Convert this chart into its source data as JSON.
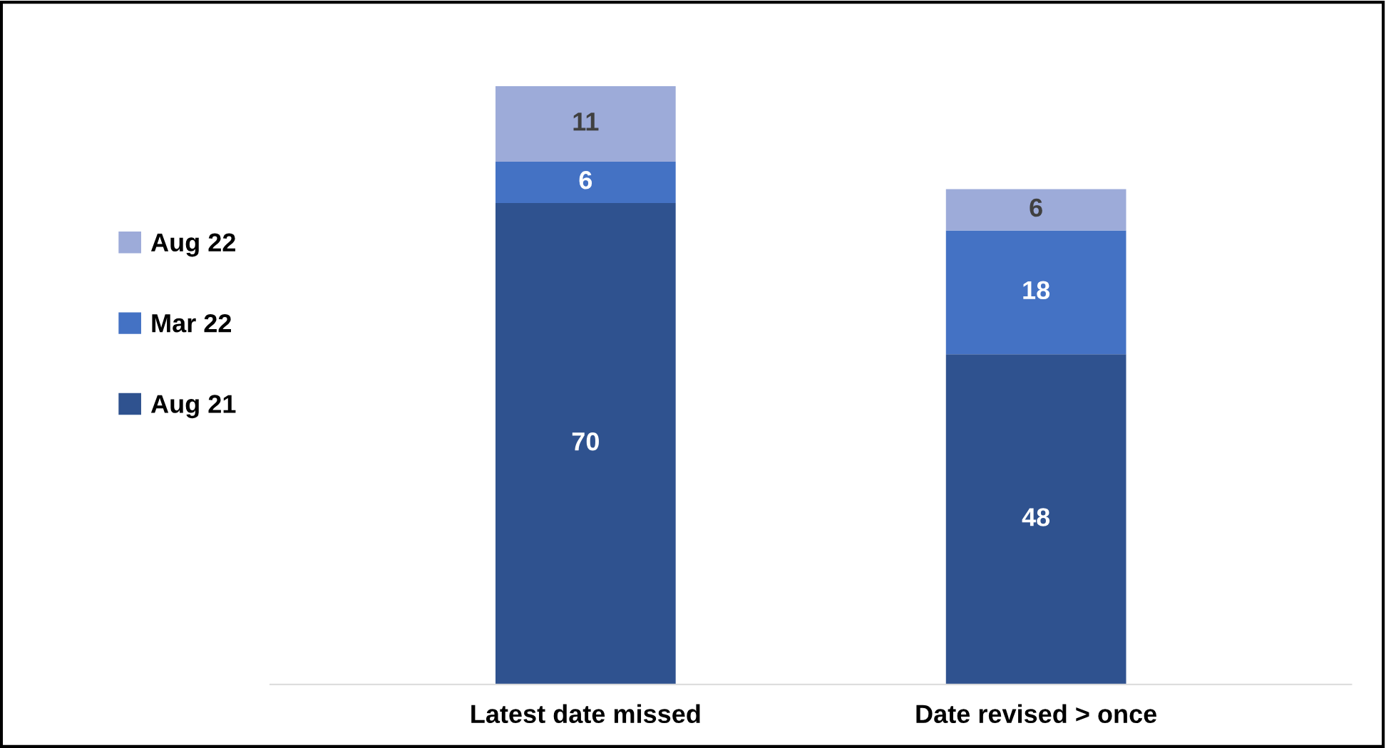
{
  "chart_data": {
    "type": "bar",
    "stacked": true,
    "data_labels": true,
    "legend": "left",
    "grid": false,
    "categories": [
      "Latest date missed",
      "Date revised > once"
    ],
    "series": [
      {
        "name": "Aug 21",
        "color": "#2f528f",
        "values": [
          70,
          48
        ]
      },
      {
        "name": "Mar 22",
        "color": "#4472c4",
        "values": [
          6,
          18
        ]
      },
      {
        "name": "Aug 22",
        "color": "#9dabd9",
        "values": [
          11,
          6
        ]
      }
    ]
  }
}
